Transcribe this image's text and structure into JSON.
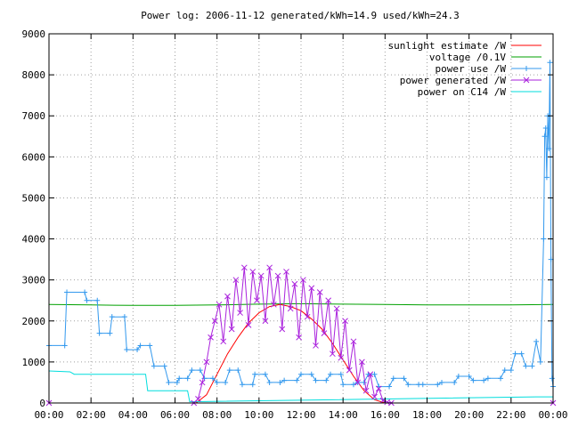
{
  "chart_data": {
    "type": "line",
    "title": "Power log: 2006-11-12 generated/kWh=14.9 used/kWh=24.3",
    "xlabel": "",
    "ylabel": "",
    "xlim": [
      0,
      24
    ],
    "ylim": [
      0,
      9000
    ],
    "grid": true,
    "legend_position": "top-right",
    "x_ticks": [
      "00:00",
      "02:00",
      "04:00",
      "06:00",
      "08:00",
      "10:00",
      "12:00",
      "14:00",
      "16:00",
      "18:00",
      "20:00",
      "22:00",
      "00:00"
    ],
    "y_ticks": [
      0,
      1000,
      2000,
      3000,
      4000,
      5000,
      6000,
      7000,
      8000,
      9000
    ],
    "series": [
      {
        "name": "sunlight estimate /W",
        "color": "#ff0000",
        "marker": "none",
        "x": [
          0,
          7.0,
          7.5,
          8.0,
          8.5,
          9.0,
          9.5,
          10.0,
          10.5,
          11.0,
          11.5,
          12.0,
          12.5,
          13.0,
          13.5,
          14.0,
          14.5,
          15.0,
          15.5,
          16.0,
          24
        ],
        "y": [
          0,
          0,
          200,
          700,
          1200,
          1600,
          1950,
          2200,
          2350,
          2400,
          2350,
          2250,
          2050,
          1800,
          1450,
          1050,
          650,
          300,
          80,
          0,
          0
        ]
      },
      {
        "name": "voltage /0.1V",
        "color": "#00a000",
        "marker": "none",
        "x": [
          0,
          2,
          4,
          6,
          8,
          10,
          12,
          14,
          16,
          18,
          20,
          22,
          24
        ],
        "y": [
          2400,
          2390,
          2380,
          2380,
          2390,
          2410,
          2420,
          2410,
          2400,
          2390,
          2390,
          2390,
          2400
        ]
      },
      {
        "name": "power use /W",
        "color": "#3399ee",
        "marker": "plus",
        "x": [
          0.0,
          0.75,
          0.85,
          1.7,
          1.8,
          2.3,
          2.4,
          2.9,
          3.0,
          3.6,
          3.7,
          4.2,
          4.35,
          4.8,
          5.0,
          5.5,
          5.7,
          6.1,
          6.2,
          6.6,
          6.8,
          7.2,
          7.4,
          7.8,
          8.0,
          8.4,
          8.6,
          9.0,
          9.2,
          9.7,
          9.8,
          10.3,
          10.5,
          11.0,
          11.2,
          11.8,
          12.0,
          12.5,
          12.7,
          13.2,
          13.4,
          13.9,
          14.0,
          14.5,
          14.7,
          15.0,
          15.2,
          15.5,
          15.7,
          16.2,
          16.4,
          16.9,
          17.1,
          17.6,
          17.8,
          18.5,
          18.7,
          19.3,
          19.5,
          20.0,
          20.2,
          20.7,
          20.9,
          21.5,
          21.7,
          22.0,
          22.2,
          22.5,
          22.7,
          23.0,
          23.2,
          23.4,
          23.55,
          23.6,
          23.65,
          23.7,
          23.75,
          23.8,
          23.85,
          23.9,
          23.95,
          24.0
        ],
        "y": [
          1400,
          1400,
          2700,
          2700,
          2500,
          2500,
          1700,
          1700,
          2100,
          2100,
          1300,
          1300,
          1400,
          1400,
          900,
          900,
          500,
          500,
          600,
          600,
          800,
          800,
          600,
          600,
          500,
          500,
          800,
          800,
          450,
          450,
          700,
          700,
          500,
          500,
          550,
          550,
          700,
          700,
          550,
          550,
          700,
          700,
          450,
          450,
          500,
          500,
          700,
          700,
          400,
          400,
          600,
          600,
          450,
          450,
          450,
          450,
          500,
          500,
          650,
          650,
          550,
          550,
          600,
          600,
          800,
          800,
          1200,
          1200,
          900,
          900,
          1500,
          1000,
          4000,
          6500,
          6700,
          5500,
          7000,
          6200,
          8300,
          3500,
          600,
          400
        ]
      },
      {
        "name": "power generated /W",
        "color": "#aa22dd",
        "marker": "cross",
        "x": [
          0.0,
          6.9,
          7.1,
          7.3,
          7.5,
          7.7,
          7.9,
          8.1,
          8.3,
          8.5,
          8.7,
          8.9,
          9.1,
          9.3,
          9.5,
          9.7,
          9.9,
          10.1,
          10.3,
          10.5,
          10.7,
          10.9,
          11.1,
          11.3,
          11.5,
          11.7,
          11.9,
          12.1,
          12.3,
          12.5,
          12.7,
          12.9,
          13.1,
          13.3,
          13.5,
          13.7,
          13.9,
          14.1,
          14.3,
          14.5,
          14.7,
          14.9,
          15.1,
          15.3,
          15.5,
          15.7,
          15.9,
          16.1,
          16.3,
          24.0
        ],
        "y": [
          0,
          0,
          100,
          500,
          1000,
          1600,
          2000,
          2400,
          1500,
          2600,
          1800,
          3000,
          2200,
          3300,
          1900,
          3200,
          2500,
          3100,
          2000,
          3300,
          2400,
          3100,
          1800,
          3200,
          2300,
          2900,
          1600,
          3000,
          2100,
          2800,
          1400,
          2700,
          1700,
          2500,
          1200,
          2300,
          1100,
          2000,
          800,
          1500,
          500,
          1000,
          300,
          700,
          150,
          350,
          60,
          20,
          0,
          0
        ]
      },
      {
        "name": "power on C14 /W",
        "color": "#00dddd",
        "marker": "none",
        "x": [
          0,
          1.0,
          1.2,
          4.6,
          4.7,
          6.6,
          6.7,
          23.2,
          24
        ],
        "y": [
          780,
          760,
          700,
          700,
          300,
          300,
          30,
          150,
          150
        ]
      }
    ]
  }
}
